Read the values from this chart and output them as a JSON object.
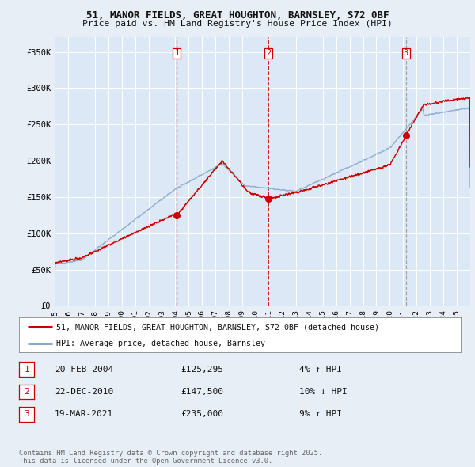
{
  "title_line1": "51, MANOR FIELDS, GREAT HOUGHTON, BARNSLEY, S72 0BF",
  "title_line2": "Price paid vs. HM Land Registry's House Price Index (HPI)",
  "ylim": [
    0,
    370000
  ],
  "yticks": [
    0,
    50000,
    100000,
    150000,
    200000,
    250000,
    300000,
    350000
  ],
  "ytick_labels": [
    "£0",
    "£50K",
    "£100K",
    "£150K",
    "£200K",
    "£250K",
    "£300K",
    "£350K"
  ],
  "bg_color": "#e8eef5",
  "plot_bg_color": "#dce8f5",
  "grid_color": "#ffffff",
  "sale_color": "#cc0000",
  "hpi_color": "#88aacc",
  "vline_color_red": "#cc0000",
  "vline_color_gray": "#999999",
  "transactions": [
    {
      "label": "1",
      "date_num": 2004.12,
      "price": 125295,
      "vline_style": "red"
    },
    {
      "label": "2",
      "date_num": 2010.97,
      "price": 147500,
      "vline_style": "red"
    },
    {
      "label": "3",
      "date_num": 2021.21,
      "price": 235000,
      "vline_style": "gray"
    }
  ],
  "legend_sale_label": "51, MANOR FIELDS, GREAT HOUGHTON, BARNSLEY, S72 0BF (detached house)",
  "legend_hpi_label": "HPI: Average price, detached house, Barnsley",
  "table_rows": [
    {
      "num": "1",
      "date": "20-FEB-2004",
      "price": "£125,295",
      "hpi": "4% ↑ HPI"
    },
    {
      "num": "2",
      "date": "22-DEC-2010",
      "price": "£147,500",
      "hpi": "10% ↓ HPI"
    },
    {
      "num": "3",
      "date": "19-MAR-2021",
      "price": "£235,000",
      "hpi": "9% ↑ HPI"
    }
  ],
  "footer": "Contains HM Land Registry data © Crown copyright and database right 2025.\nThis data is licensed under the Open Government Licence v3.0.",
  "xmin": 1995.0,
  "xmax": 2026.0
}
